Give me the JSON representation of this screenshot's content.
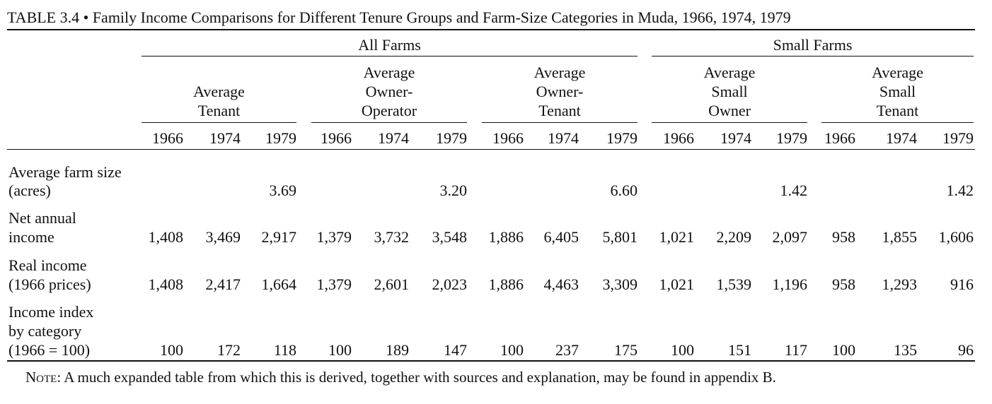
{
  "table_caption": "TABLE 3.4 • Family Income Comparisons for Different Tenure Groups and Farm-Size Categories in Muda, 1966, 1974, 1979",
  "spanners": [
    "All Farms",
    "Small Farms"
  ],
  "groups": [
    [
      "Average",
      "Tenant"
    ],
    [
      "Average",
      "Owner-",
      "Operator"
    ],
    [
      "Average",
      "Owner-",
      "Tenant"
    ],
    [
      "Average",
      "Small",
      "Owner"
    ],
    [
      "Average",
      "Small",
      "Tenant"
    ]
  ],
  "years": [
    "1966",
    "1974",
    "1979"
  ],
  "rows": [
    {
      "label": [
        "Average farm size",
        "(acres)"
      ],
      "values": [
        "",
        "",
        "3.69",
        "",
        "",
        "3.20",
        "",
        "",
        "6.60",
        "",
        "",
        "1.42",
        "",
        "",
        "1.42"
      ]
    },
    {
      "label": [
        "Net annual",
        "income"
      ],
      "values": [
        "1,408",
        "3,469",
        "2,917",
        "1,379",
        "3,732",
        "3,548",
        "1,886",
        "6,405",
        "5,801",
        "1,021",
        "2,209",
        "2,097",
        "958",
        "1,855",
        "1,606"
      ]
    },
    {
      "label": [
        "Real income",
        "(1966 prices)"
      ],
      "values": [
        "1,408",
        "2,417",
        "1,664",
        "1,379",
        "2,601",
        "2,023",
        "1,886",
        "4,463",
        "3,309",
        "1,021",
        "1,539",
        "1,196",
        "958",
        "1,293",
        "916"
      ]
    },
    {
      "label": [
        "Income index",
        "by category",
        "(1966 = 100)"
      ],
      "values": [
        "100",
        "172",
        "118",
        "100",
        "189",
        "147",
        "100",
        "237",
        "175",
        "100",
        "151",
        "117",
        "100",
        "135",
        "96"
      ]
    }
  ],
  "note_lead": "Note:",
  "note_text": " A much expanded table from which this is derived, together with sources and explanation, may be found in appendix B."
}
